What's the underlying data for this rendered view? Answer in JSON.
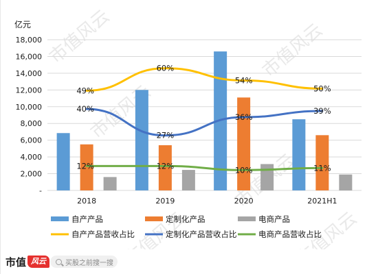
{
  "chart_data": {
    "type": "bar",
    "yunit": "亿元",
    "categories": [
      "2018",
      "2019",
      "2020",
      "2021H1"
    ],
    "ylim": [
      0,
      18000
    ],
    "yticks": [
      {
        "value": 0,
        "label": "-"
      },
      {
        "value": 2000,
        "label": "2,000"
      },
      {
        "value": 4000,
        "label": "4,000"
      },
      {
        "value": 6000,
        "label": "6,000"
      },
      {
        "value": 8000,
        "label": "8,000"
      },
      {
        "value": 10000,
        "label": "10,000"
      },
      {
        "value": 12000,
        "label": "12,000"
      },
      {
        "value": 14000,
        "label": "14,000"
      },
      {
        "value": 16000,
        "label": "16,000"
      },
      {
        "value": 18000,
        "label": "18,000"
      }
    ],
    "grid": true,
    "legend_position": "bottom",
    "bar_series": [
      {
        "name": "自产产品",
        "color": "#5b9bd5",
        "values": [
          6850,
          12000,
          16600,
          8500
        ]
      },
      {
        "name": "定制化产品",
        "color": "#ed7d31",
        "values": [
          5500,
          5400,
          11100,
          6600
        ]
      },
      {
        "name": "电商产品",
        "color": "#a5a5a5",
        "values": [
          1600,
          2450,
          3150,
          1900
        ]
      }
    ],
    "line_series": [
      {
        "name": "自产产品营收占比",
        "color": "#ffc000",
        "values": [
          49,
          60,
          54,
          50
        ],
        "labels": [
          "49%",
          "60%",
          "54%",
          "50%"
        ]
      },
      {
        "name": "定制化产品营收占比",
        "color": "#4472c4",
        "values": [
          40,
          27,
          36,
          39
        ],
        "labels": [
          "40%",
          "27%",
          "36%",
          "39%"
        ]
      },
      {
        "name": "电商产品营收占比",
        "color": "#70ad47",
        "values": [
          12,
          12,
          10,
          11
        ],
        "labels": [
          "12%",
          "12%",
          "10%",
          "11%"
        ]
      }
    ]
  },
  "watermark": "市值风云",
  "footer": {
    "brand": "市值",
    "brand_tag": "风云",
    "search_placeholder": "买股之前搜一搜"
  }
}
